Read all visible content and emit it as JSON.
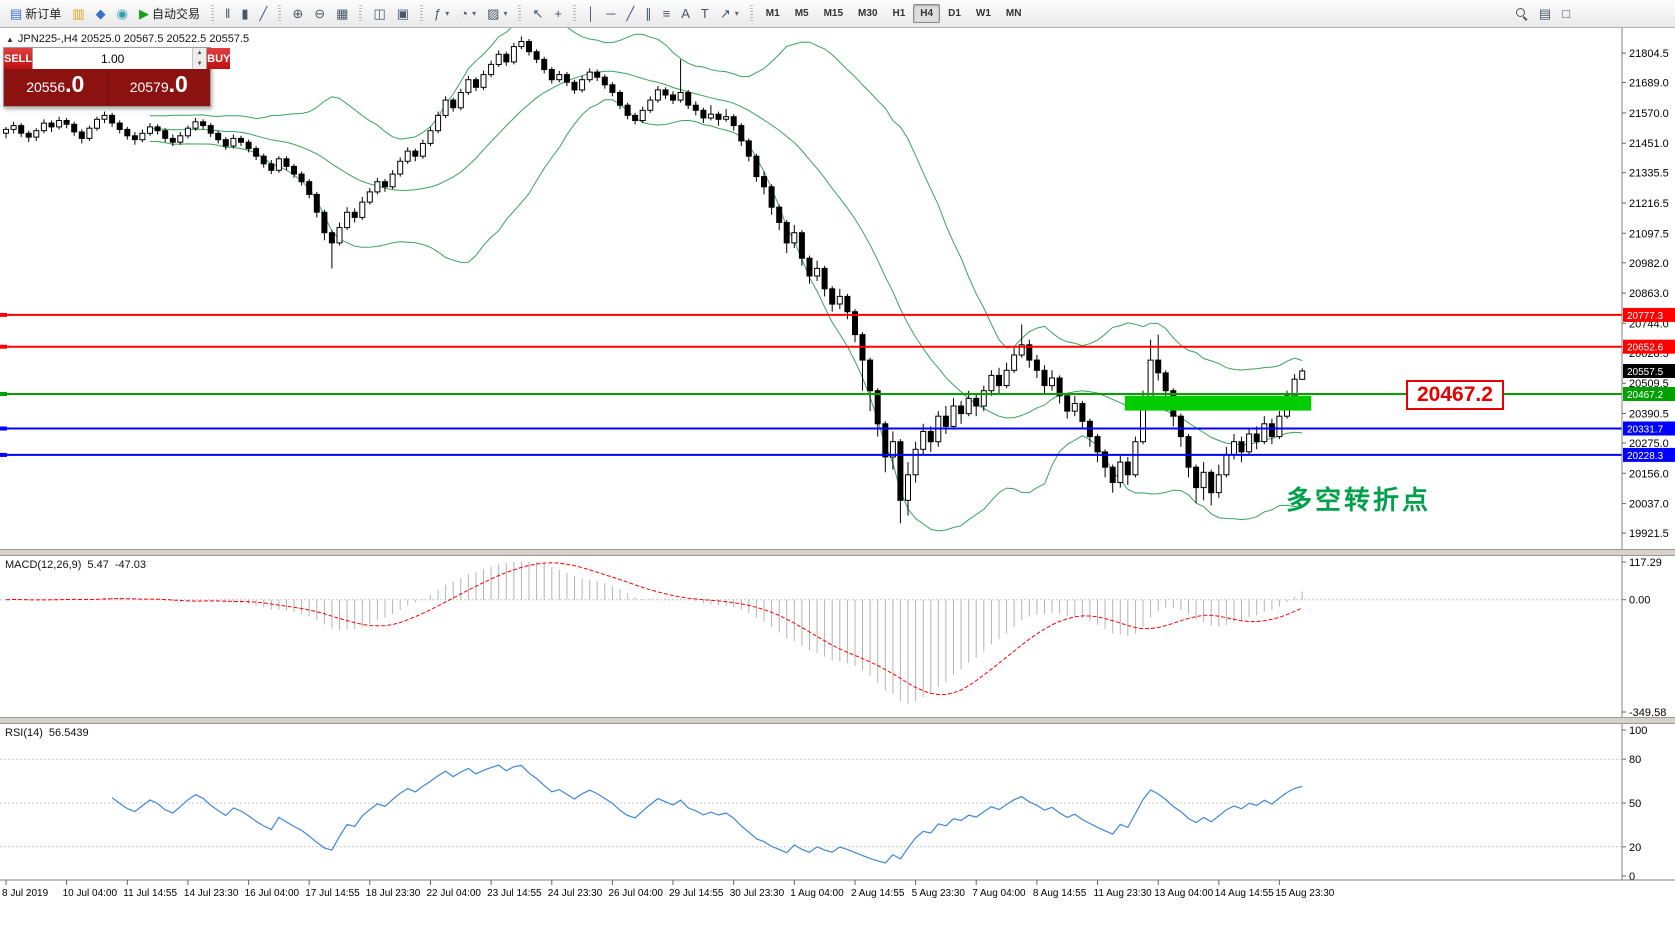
{
  "toolbar": {
    "dropdown_glyph": "▾",
    "groups": [
      {
        "name": "trade-group",
        "items": [
          {
            "name": "new-order-button",
            "glyph": "▤",
            "color": "blue",
            "label": "新订单"
          },
          {
            "name": "market-watch-button",
            "glyph": "▥",
            "color": "yellow"
          },
          {
            "name": "navigator-button",
            "glyph": "◆",
            "color": "blue"
          },
          {
            "name": "terminal-button",
            "glyph": "◉",
            "color": "teal"
          },
          {
            "name": "autotrading-button",
            "glyph": "▶",
            "color": "green",
            "label": "自动交易"
          }
        ]
      },
      {
        "name": "chart-type-group",
        "items": [
          {
            "name": "bar-chart-button",
            "glyph": "‖"
          },
          {
            "name": "candlestick-chart-button",
            "glyph": "▮"
          },
          {
            "name": "line-chart-button",
            "glyph": "╱"
          }
        ]
      },
      {
        "name": "zoom-group",
        "items": [
          {
            "name": "zoom-in-button",
            "glyph": "⊕"
          },
          {
            "name": "zoom-out-button",
            "glyph": "⊖"
          },
          {
            "name": "tile-windows-button",
            "glyph": "▦"
          }
        ]
      },
      {
        "name": "arrange-group",
        "items": [
          {
            "name": "auto-arrange-button",
            "glyph": "◫"
          },
          {
            "name": "cascade-windows-button",
            "glyph": "▣"
          }
        ]
      },
      {
        "name": "objects-group",
        "items": [
          {
            "name": "indicators-button",
            "glyph": "ƒ",
            "dropdown": true
          },
          {
            "name": "periods-button",
            "glyph": "◔",
            "dropdown": true
          },
          {
            "name": "templates-button",
            "glyph": "▨",
            "dropdown": true
          }
        ]
      },
      {
        "name": "cursor-group",
        "items": [
          {
            "name": "cursor-button",
            "glyph": "↖"
          },
          {
            "name": "crosshair-button",
            "glyph": "+"
          }
        ]
      },
      {
        "name": "drawing-group",
        "items": [
          {
            "name": "vertical-line-button",
            "glyph": "│"
          },
          {
            "name": "horizontal-line-button",
            "glyph": "─"
          },
          {
            "name": "trendline-button",
            "glyph": "╱"
          },
          {
            "name": "equidistant-channel-button",
            "glyph": "∥"
          },
          {
            "name": "fibonacci-button",
            "glyph": "≡"
          },
          {
            "name": "text-button",
            "glyph": "A"
          },
          {
            "name": "text-label-button",
            "glyph": "T"
          },
          {
            "name": "arrows-button",
            "glyph": "↗",
            "dropdown": true
          }
        ]
      }
    ],
    "timeframes": {
      "items": [
        "M1",
        "M5",
        "M15",
        "M30",
        "H1",
        "H4",
        "D1",
        "W1",
        "MN"
      ],
      "active": "H4"
    },
    "right_items": [
      {
        "name": "search-button",
        "css_icon": "magnifier"
      },
      {
        "name": "data-window-button",
        "glyph": "▤"
      },
      {
        "name": "chart-list-button",
        "glyph": "□"
      }
    ]
  },
  "chart": {
    "expander_glyph": "▲",
    "symbol_line": "JPN225-,H4  20525.0 20567.5 20522.5 20557.5",
    "trade_panel": {
      "sell_label": "SELL",
      "buy_label": "BUY",
      "volume": "1.00",
      "spin_up_glyph": "▲",
      "spin_down_glyph": "▼",
      "sell_price_main": "20556",
      "sell_price_big": ".0",
      "buy_price_main": "20579",
      "buy_price_big": ".0"
    },
    "levels": [
      {
        "price": 20777.3,
        "label": "20777.3",
        "color": "#ff0000"
      },
      {
        "price": 20652.6,
        "label": "20652.6",
        "color": "#ff0000"
      },
      {
        "price": 20467.2,
        "label": "20467.2",
        "color": "#00a000"
      },
      {
        "price": 20331.7,
        "label": "20331.7",
        "color": "#0000ff"
      },
      {
        "price": 20228.3,
        "label": "20228.3",
        "color": "#0000ff"
      }
    ],
    "current_price": "20557.5",
    "big_label": "20467.2",
    "annotation": "多空转折点",
    "highlight_rect": {
      "bar_start": 148,
      "bar_end": 171.8,
      "price_top": 20460,
      "price_bottom": 20402,
      "color": "#00cc00"
    },
    "y_axis_ticks": [
      21804.5,
      21689.0,
      21570.0,
      21451.0,
      21335.5,
      21216.5,
      21097.5,
      20982.0,
      20863.0,
      20744.0,
      20628.5,
      20509.5,
      20390.5,
      20275.0,
      20156.0,
      20037.0,
      19921.5
    ],
    "x_axis_labels": [
      "8 Jul 2019",
      "10 Jul 04:00",
      "11 Jul 14:55",
      "14 Jul 23:30",
      "16 Jul 04:00",
      "17 Jul 14:55",
      "18 Jul 23:30",
      "22 Jul 04:00",
      "23 Jul 14:55",
      "24 Jul 23:30",
      "26 Jul 04:00",
      "29 Jul 14:55",
      "30 Jul 23:30",
      "1 Aug 04:00",
      "2 Aug 14:55",
      "5 Aug 23:30",
      "7 Aug 04:00",
      "8 Aug 14:55",
      "11 Aug 23:30",
      "13 Aug 04:00",
      "14 Aug 14:55",
      "15 Aug 23:30"
    ]
  },
  "macd_panel": {
    "label": "MACD(12,26,9)",
    "main_value": "5.47",
    "signal_value": "-47.03",
    "axis": [
      "117.29",
      "0.00",
      "-349.58"
    ]
  },
  "rsi_panel": {
    "label": "RSI(14)",
    "value": "56.5439",
    "axis": [
      "100",
      "80",
      "50",
      "20",
      "0"
    ]
  },
  "chart_data": {
    "type": "candlestick",
    "symbol": "JPN225-",
    "timeframe": "H4",
    "last_ohlc": {
      "open": 20525.0,
      "high": 20567.5,
      "low": 20522.5,
      "close": 20557.5
    },
    "indicators": {
      "bollinger": {
        "period": 20,
        "deviation": 2,
        "color": "#3aa35c"
      },
      "macd": {
        "fast": 12,
        "slow": 26,
        "signal": 9,
        "histogram_color": "#b4b4b4",
        "signal_color": "#ff0000",
        "current_main": 5.47,
        "current_signal": -47.03
      },
      "rsi": {
        "period": 14,
        "color": "#3f87d6",
        "current": 56.5439
      }
    },
    "ohlc": [
      [
        21490,
        21515,
        21470,
        21505
      ],
      [
        21505,
        21535,
        21490,
        21520
      ],
      [
        21520,
        21530,
        21475,
        21490
      ],
      [
        21490,
        21500,
        21455,
        21475
      ],
      [
        21475,
        21510,
        21460,
        21500
      ],
      [
        21500,
        21545,
        21490,
        21530
      ],
      [
        21530,
        21540,
        21495,
        21515
      ],
      [
        21515,
        21555,
        21505,
        21540
      ],
      [
        21540,
        21550,
        21510,
        21525
      ],
      [
        21525,
        21535,
        21480,
        21495
      ],
      [
        21495,
        21505,
        21450,
        21470
      ],
      [
        21470,
        21520,
        21460,
        21510
      ],
      [
        21510,
        21555,
        21500,
        21545
      ],
      [
        21545,
        21575,
        21530,
        21560
      ],
      [
        21560,
        21570,
        21515,
        21530
      ],
      [
        21530,
        21540,
        21490,
        21505
      ],
      [
        21505,
        21515,
        21465,
        21480
      ],
      [
        21480,
        21495,
        21445,
        21465
      ],
      [
        21465,
        21505,
        21455,
        21490
      ],
      [
        21490,
        21530,
        21480,
        21515
      ],
      [
        21515,
        21525,
        21485,
        21500
      ],
      [
        21500,
        21510,
        21455,
        21470
      ],
      [
        21470,
        21485,
        21440,
        21455
      ],
      [
        21455,
        21495,
        21445,
        21480
      ],
      [
        21480,
        21520,
        21470,
        21510
      ],
      [
        21510,
        21550,
        21500,
        21535
      ],
      [
        21535,
        21545,
        21505,
        21520
      ],
      [
        21520,
        21530,
        21475,
        21490
      ],
      [
        21490,
        21500,
        21450,
        21465
      ],
      [
        21465,
        21475,
        21425,
        21440
      ],
      [
        21440,
        21485,
        21430,
        21470
      ],
      [
        21470,
        21480,
        21440,
        21455
      ],
      [
        21455,
        21465,
        21415,
        21430
      ],
      [
        21430,
        21440,
        21385,
        21400
      ],
      [
        21400,
        21410,
        21355,
        21370
      ],
      [
        21370,
        21385,
        21330,
        21345
      ],
      [
        21345,
        21400,
        21335,
        21390
      ],
      [
        21390,
        21400,
        21345,
        21360
      ],
      [
        21360,
        21370,
        21315,
        21330
      ],
      [
        21330,
        21340,
        21285,
        21300
      ],
      [
        21300,
        21310,
        21235,
        21250
      ],
      [
        21250,
        21260,
        21160,
        21180
      ],
      [
        21180,
        21190,
        21070,
        21100
      ],
      [
        21100,
        21110,
        20960,
        21060
      ],
      [
        21060,
        21140,
        21050,
        21120
      ],
      [
        21120,
        21200,
        21110,
        21180
      ],
      [
        21180,
        21195,
        21140,
        21160
      ],
      [
        21160,
        21240,
        21150,
        21220
      ],
      [
        21220,
        21275,
        21210,
        21260
      ],
      [
        21260,
        21315,
        21250,
        21300
      ],
      [
        21300,
        21310,
        21260,
        21280
      ],
      [
        21280,
        21345,
        21270,
        21330
      ],
      [
        21330,
        21395,
        21320,
        21380
      ],
      [
        21380,
        21435,
        21370,
        21420
      ],
      [
        21420,
        21430,
        21380,
        21400
      ],
      [
        21400,
        21465,
        21390,
        21450
      ],
      [
        21450,
        21515,
        21440,
        21500
      ],
      [
        21500,
        21575,
        21490,
        21560
      ],
      [
        21560,
        21635,
        21550,
        21620
      ],
      [
        21620,
        21630,
        21575,
        21590
      ],
      [
        21590,
        21665,
        21580,
        21650
      ],
      [
        21650,
        21715,
        21640,
        21700
      ],
      [
        21700,
        21710,
        21655,
        21670
      ],
      [
        21670,
        21735,
        21660,
        21720
      ],
      [
        21720,
        21775,
        21710,
        21760
      ],
      [
        21760,
        21815,
        21750,
        21800
      ],
      [
        21800,
        21810,
        21755,
        21770
      ],
      [
        21770,
        21845,
        21760,
        21830
      ],
      [
        21830,
        21870,
        21820,
        21850
      ],
      [
        21850,
        21860,
        21795,
        21810
      ],
      [
        21810,
        21820,
        21765,
        21780
      ],
      [
        21780,
        21790,
        21725,
        21740
      ],
      [
        21740,
        21750,
        21685,
        21700
      ],
      [
        21700,
        21735,
        21690,
        21720
      ],
      [
        21720,
        21730,
        21675,
        21690
      ],
      [
        21690,
        21700,
        21645,
        21660
      ],
      [
        21660,
        21715,
        21650,
        21700
      ],
      [
        21700,
        21745,
        21690,
        21730
      ],
      [
        21730,
        21740,
        21695,
        21710
      ],
      [
        21710,
        21720,
        21665,
        21680
      ],
      [
        21680,
        21690,
        21635,
        21650
      ],
      [
        21650,
        21660,
        21585,
        21600
      ],
      [
        21600,
        21610,
        21545,
        21560
      ],
      [
        21560,
        21570,
        21525,
        21540
      ],
      [
        21540,
        21595,
        21530,
        21580
      ],
      [
        21580,
        21635,
        21570,
        21620
      ],
      [
        21620,
        21675,
        21610,
        21660
      ],
      [
        21660,
        21670,
        21625,
        21640
      ],
      [
        21640,
        21655,
        21605,
        21620
      ],
      [
        21620,
        21780,
        21610,
        21650
      ],
      [
        21650,
        21660,
        21585,
        21600
      ],
      [
        21600,
        21615,
        21560,
        21580
      ],
      [
        21580,
        21590,
        21530,
        21550
      ],
      [
        21550,
        21600,
        21540,
        21565
      ],
      [
        21565,
        21575,
        21520,
        21545
      ],
      [
        21545,
        21585,
        21535,
        21555
      ],
      [
        21555,
        21565,
        21500,
        21520
      ],
      [
        21520,
        21530,
        21440,
        21460
      ],
      [
        21460,
        21470,
        21380,
        21400
      ],
      [
        21400,
        21410,
        21300,
        21320
      ],
      [
        21320,
        21340,
        21250,
        21280
      ],
      [
        21280,
        21290,
        21170,
        21200
      ],
      [
        21200,
        21210,
        21110,
        21140
      ],
      [
        21140,
        21150,
        21020,
        21060
      ],
      [
        21060,
        21130,
        21040,
        21100
      ],
      [
        21100,
        21110,
        20970,
        21000
      ],
      [
        21000,
        21010,
        20900,
        20930
      ],
      [
        20930,
        20990,
        20910,
        20960
      ],
      [
        20960,
        20970,
        20850,
        20880
      ],
      [
        20880,
        20890,
        20790,
        20820
      ],
      [
        20820,
        20880,
        20800,
        20850
      ],
      [
        20850,
        20860,
        20760,
        20790
      ],
      [
        20790,
        20800,
        20670,
        20700
      ],
      [
        20700,
        20710,
        20480,
        20600
      ],
      [
        20600,
        20610,
        20400,
        20480
      ],
      [
        20480,
        20490,
        20300,
        20350
      ],
      [
        20350,
        20360,
        20160,
        20220
      ],
      [
        20220,
        20320,
        20170,
        20280
      ],
      [
        20280,
        20290,
        19960,
        20050
      ],
      [
        20050,
        20200,
        19990,
        20150
      ],
      [
        20150,
        20280,
        20120,
        20250
      ],
      [
        20250,
        20350,
        20230,
        20320
      ],
      [
        20320,
        20340,
        20240,
        20280
      ],
      [
        20280,
        20400,
        20260,
        20380
      ],
      [
        20380,
        20420,
        20310,
        20340
      ],
      [
        20340,
        20450,
        20330,
        20420
      ],
      [
        20420,
        20440,
        20350,
        20390
      ],
      [
        20390,
        20480,
        20380,
        20450
      ],
      [
        20450,
        20470,
        20380,
        20420
      ],
      [
        20420,
        20500,
        20400,
        20480
      ],
      [
        20480,
        20560,
        20460,
        20540
      ],
      [
        20540,
        20570,
        20470,
        20500
      ],
      [
        20500,
        20590,
        20490,
        20560
      ],
      [
        20560,
        20650,
        20550,
        20620
      ],
      [
        20620,
        20740,
        20610,
        20660
      ],
      [
        20660,
        20680,
        20570,
        20600
      ],
      [
        20600,
        20620,
        20530,
        20560
      ],
      [
        20560,
        20580,
        20470,
        20500
      ],
      [
        20500,
        20560,
        20480,
        20530
      ],
      [
        20530,
        20540,
        20430,
        20460
      ],
      [
        20460,
        20470,
        20370,
        20400
      ],
      [
        20400,
        20460,
        20380,
        20430
      ],
      [
        20430,
        20440,
        20330,
        20360
      ],
      [
        20360,
        20370,
        20260,
        20300
      ],
      [
        20300,
        20310,
        20200,
        20240
      ],
      [
        20240,
        20250,
        20140,
        20180
      ],
      [
        20180,
        20190,
        20080,
        20120
      ],
      [
        20120,
        20230,
        20100,
        20200
      ],
      [
        20200,
        20220,
        20110,
        20150
      ],
      [
        20150,
        20300,
        20140,
        20280
      ],
      [
        20280,
        20480,
        20270,
        20450
      ],
      [
        20450,
        20680,
        20440,
        20600
      ],
      [
        20600,
        20700,
        20520,
        20550
      ],
      [
        20550,
        20560,
        20440,
        20480
      ],
      [
        20480,
        20490,
        20340,
        20380
      ],
      [
        20380,
        20390,
        20260,
        20300
      ],
      [
        20300,
        20310,
        20140,
        20180
      ],
      [
        20180,
        20190,
        20040,
        20100
      ],
      [
        20100,
        20200,
        20050,
        20160
      ],
      [
        20160,
        20170,
        20030,
        20080
      ],
      [
        20080,
        20190,
        20060,
        20150
      ],
      [
        20150,
        20260,
        20140,
        20230
      ],
      [
        20230,
        20310,
        20210,
        20280
      ],
      [
        20280,
        20300,
        20200,
        20240
      ],
      [
        20240,
        20330,
        20230,
        20310
      ],
      [
        20310,
        20340,
        20250,
        20280
      ],
      [
        20280,
        20380,
        20270,
        20350
      ],
      [
        20350,
        20370,
        20270,
        20300
      ],
      [
        20300,
        20400,
        20290,
        20380
      ],
      [
        20380,
        20480,
        20370,
        20460
      ],
      [
        20460,
        20545,
        20450,
        20525
      ],
      [
        20525,
        20567.5,
        20522.5,
        20557.5
      ]
    ]
  }
}
